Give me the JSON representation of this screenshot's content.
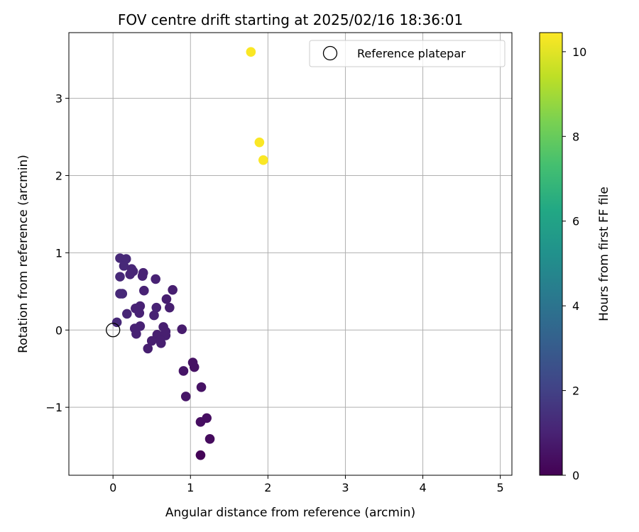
{
  "chart_data": {
    "type": "scatter",
    "title": "FOV centre drift starting at 2025/02/16 18:36:01",
    "xlabel": "Angular distance from reference (arcmin)",
    "ylabel": "Rotation from reference (arcmin)",
    "xlim": [
      -0.57,
      5.15
    ],
    "ylim": [
      -1.88,
      3.85
    ],
    "xticks": [
      0,
      1,
      2,
      3,
      4,
      5
    ],
    "yticks": [
      -1,
      0,
      1,
      2,
      3
    ],
    "grid": true,
    "legend": {
      "placement": "top-right",
      "entries": [
        "Reference platepar"
      ]
    },
    "colorbar": {
      "label": "Hours from first FF file",
      "min": 0,
      "max": 10.45,
      "ticks": [
        0,
        2,
        4,
        6,
        8,
        10
      ],
      "colormap": "viridis"
    },
    "reference_point": {
      "x": 0,
      "y": 0,
      "label": "Reference platepar"
    },
    "points": [
      {
        "x": 1.78,
        "y": 3.6,
        "h": 10.4
      },
      {
        "x": 1.89,
        "y": 2.43,
        "h": 10.4
      },
      {
        "x": 1.94,
        "y": 2.2,
        "h": 10.4
      },
      {
        "x": 0.09,
        "y": 0.93,
        "h": 1.2
      },
      {
        "x": 0.17,
        "y": 0.92,
        "h": 1.2
      },
      {
        "x": 0.14,
        "y": 0.83,
        "h": 1.2
      },
      {
        "x": 0.24,
        "y": 0.79,
        "h": 1.1
      },
      {
        "x": 0.26,
        "y": 0.76,
        "h": 1.1
      },
      {
        "x": 0.22,
        "y": 0.72,
        "h": 1.1
      },
      {
        "x": 0.39,
        "y": 0.74,
        "h": 1.0
      },
      {
        "x": 0.38,
        "y": 0.7,
        "h": 1.0
      },
      {
        "x": 0.09,
        "y": 0.69,
        "h": 1.2
      },
      {
        "x": 0.55,
        "y": 0.66,
        "h": 1.0
      },
      {
        "x": 0.4,
        "y": 0.51,
        "h": 1.0
      },
      {
        "x": 0.77,
        "y": 0.52,
        "h": 0.9
      },
      {
        "x": 0.09,
        "y": 0.47,
        "h": 1.2
      },
      {
        "x": 0.12,
        "y": 0.47,
        "h": 1.2
      },
      {
        "x": 0.69,
        "y": 0.4,
        "h": 0.9
      },
      {
        "x": 0.35,
        "y": 0.31,
        "h": 1.0
      },
      {
        "x": 0.73,
        "y": 0.29,
        "h": 0.9
      },
      {
        "x": 0.29,
        "y": 0.28,
        "h": 1.0
      },
      {
        "x": 0.56,
        "y": 0.29,
        "h": 1.0
      },
      {
        "x": 0.34,
        "y": 0.22,
        "h": 1.0
      },
      {
        "x": 0.18,
        "y": 0.21,
        "h": 1.1
      },
      {
        "x": 0.53,
        "y": 0.19,
        "h": 1.0
      },
      {
        "x": 0.05,
        "y": 0.1,
        "h": 1.2
      },
      {
        "x": 0.35,
        "y": 0.05,
        "h": 1.0
      },
      {
        "x": 0.28,
        "y": 0.02,
        "h": 1.0
      },
      {
        "x": 0.65,
        "y": 0.04,
        "h": 0.9
      },
      {
        "x": 0.89,
        "y": 0.01,
        "h": 0.8
      },
      {
        "x": 0.68,
        "y": -0.02,
        "h": 0.9
      },
      {
        "x": 0.57,
        "y": -0.06,
        "h": 0.9
      },
      {
        "x": 0.3,
        "y": -0.05,
        "h": 1.0
      },
      {
        "x": 0.68,
        "y": -0.07,
        "h": 0.9
      },
      {
        "x": 0.61,
        "y": -0.13,
        "h": 0.9
      },
      {
        "x": 0.5,
        "y": -0.14,
        "h": 0.9
      },
      {
        "x": 0.62,
        "y": -0.17,
        "h": 0.9
      },
      {
        "x": 0.45,
        "y": -0.24,
        "h": 0.9
      },
      {
        "x": 1.03,
        "y": -0.42,
        "h": 0.5
      },
      {
        "x": 1.05,
        "y": -0.48,
        "h": 0.5
      },
      {
        "x": 0.91,
        "y": -0.53,
        "h": 0.6
      },
      {
        "x": 1.14,
        "y": -0.74,
        "h": 0.5
      },
      {
        "x": 0.94,
        "y": -0.86,
        "h": 0.6
      },
      {
        "x": 1.21,
        "y": -1.14,
        "h": 0.4
      },
      {
        "x": 1.13,
        "y": -1.19,
        "h": 0.4
      },
      {
        "x": 1.25,
        "y": -1.41,
        "h": 0.3
      },
      {
        "x": 1.13,
        "y": -1.62,
        "h": 0.1
      }
    ]
  }
}
